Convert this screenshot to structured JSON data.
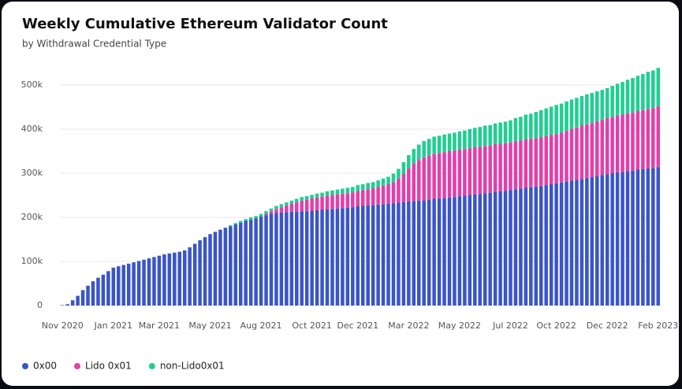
{
  "chart_data": {
    "type": "stacked_bar",
    "title": "Weekly Cumulative Ethereum Validator Count",
    "subtitle": "by Withdrawal Credential Type",
    "categories": [
      "Nov 2020",
      null,
      null,
      null,
      null,
      null,
      null,
      null,
      null,
      null,
      "Jan 2021",
      null,
      null,
      null,
      null,
      null,
      null,
      null,
      null,
      "Mar 2021",
      null,
      null,
      null,
      null,
      null,
      null,
      null,
      null,
      null,
      "May 2021",
      null,
      null,
      null,
      null,
      null,
      null,
      null,
      null,
      null,
      "Aug 2021",
      null,
      null,
      null,
      null,
      null,
      null,
      null,
      null,
      null,
      "Oct 2021",
      null,
      null,
      null,
      null,
      null,
      null,
      null,
      null,
      "Dec 2021",
      null,
      null,
      null,
      null,
      null,
      null,
      null,
      null,
      null,
      "Mar 2022",
      null,
      null,
      null,
      null,
      null,
      null,
      null,
      null,
      null,
      "May 2022",
      null,
      null,
      null,
      null,
      null,
      null,
      null,
      null,
      null,
      "Jul 2022",
      null,
      null,
      null,
      null,
      null,
      null,
      null,
      null,
      "Oct 2022",
      null,
      null,
      null,
      null,
      null,
      null,
      null,
      null,
      null,
      "Dec 2022",
      null,
      null,
      null,
      null,
      null,
      null,
      null,
      null,
      null,
      "Feb 2023"
    ],
    "series": [
      {
        "name": "0x00",
        "color": "#3a55c8",
        "values": [
          1,
          3,
          12,
          22,
          35,
          45,
          55,
          63,
          70,
          78,
          86,
          89,
          92,
          95,
          98,
          101,
          104,
          107,
          110,
          113,
          116,
          118,
          120,
          122,
          125,
          132,
          140,
          148,
          155,
          162,
          167,
          172,
          176,
          180,
          184,
          188,
          192,
          195,
          198,
          202,
          205,
          208,
          210,
          211,
          212,
          213,
          213,
          214,
          214,
          215,
          216,
          217,
          218,
          219,
          220,
          221,
          222,
          223,
          225,
          226,
          227,
          228,
          229,
          230,
          231,
          232,
          233,
          234,
          236,
          237,
          238,
          239,
          240,
          242,
          243,
          244,
          245,
          246,
          248,
          249,
          251,
          252,
          253,
          255,
          256,
          258,
          259,
          260,
          262,
          264,
          265,
          267,
          268,
          270,
          271,
          273,
          275,
          277,
          279,
          281,
          283,
          285,
          287,
          289,
          291,
          294,
          296,
          298,
          300,
          302,
          303,
          305,
          306,
          308,
          309,
          311,
          312,
          314
        ]
      },
      {
        "name": "Lido 0x01",
        "color": "#e23fab",
        "values": [
          0,
          0,
          0,
          0,
          0,
          0,
          0,
          0,
          0,
          0,
          0,
          0,
          0,
          0,
          0,
          0,
          0,
          0,
          0,
          0,
          0,
          0,
          0,
          0,
          0,
          0,
          0,
          0,
          0,
          0,
          0,
          0,
          0,
          0,
          0,
          0,
          0,
          0,
          0,
          0,
          3,
          6,
          9,
          12,
          15,
          18,
          21,
          24,
          26,
          28,
          29,
          30,
          31,
          32,
          32,
          33,
          33,
          34,
          35,
          36,
          37,
          38,
          40,
          42,
          44,
          48,
          55,
          65,
          75,
          85,
          92,
          97,
          100,
          102,
          103,
          104,
          105,
          105,
          106,
          106,
          106,
          107,
          107,
          107,
          107,
          108,
          108,
          108,
          108,
          109,
          109,
          110,
          110,
          110,
          111,
          111,
          112,
          112,
          113,
          115,
          117,
          119,
          121,
          122,
          123,
          124,
          125,
          127,
          128,
          129,
          130,
          131,
          132,
          133,
          134,
          135,
          136,
          138
        ]
      },
      {
        "name": "non-Lido0x01",
        "color": "#1fcf90",
        "values": [
          0,
          0,
          0,
          0,
          0,
          0,
          0,
          0,
          0,
          0,
          0,
          0,
          0,
          0,
          0,
          0,
          0,
          0,
          0,
          0,
          0,
          0,
          0,
          0,
          0,
          0,
          0,
          0,
          0,
          0,
          0,
          0,
          1,
          2,
          3,
          4,
          4,
          5,
          5,
          6,
          6,
          6,
          7,
          7,
          7,
          7,
          8,
          8,
          8,
          8,
          9,
          9,
          10,
          10,
          11,
          11,
          12,
          12,
          13,
          13,
          14,
          14,
          15,
          16,
          17,
          19,
          22,
          26,
          30,
          33,
          35,
          37,
          38,
          39,
          39,
          40,
          40,
          41,
          41,
          42,
          43,
          44,
          45,
          46,
          46,
          47,
          48,
          49,
          50,
          52,
          54,
          56,
          57,
          59,
          61,
          63,
          64,
          66,
          66,
          67,
          67,
          67,
          67,
          68,
          68,
          68,
          68,
          68,
          70,
          72,
          74,
          76,
          78,
          80,
          82,
          84,
          85,
          87
        ]
      }
    ],
    "ylim": [
      0,
      550
    ],
    "yticks": [
      0,
      {
        "value": 100,
        "label": "100k"
      },
      {
        "value": 200,
        "label": "200k"
      },
      {
        "value": 300,
        "label": "300k"
      },
      {
        "value": 400,
        "label": "400k"
      },
      {
        "value": 500,
        "label": "500k"
      }
    ],
    "grid": true
  }
}
